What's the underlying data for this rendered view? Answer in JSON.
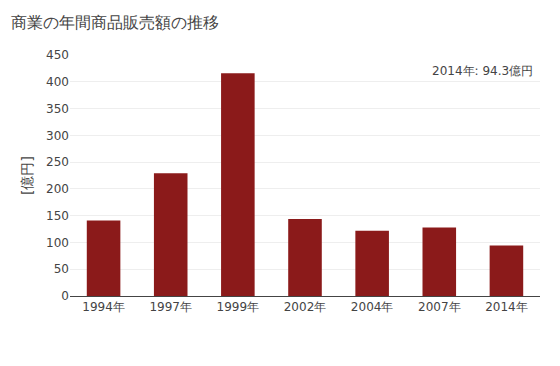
{
  "chart_data": {
    "type": "bar",
    "title": "商業の年間商品販売額の推移",
    "ylabel": "[億円]",
    "annotation": "2014年: 94.3億円",
    "categories": [
      "1994年",
      "1997年",
      "1999年",
      "2002年",
      "2004年",
      "2007年",
      "2014年"
    ],
    "values": [
      141,
      229,
      416,
      144,
      122,
      128,
      94.3
    ],
    "color": "#8B1A1A",
    "ylim": [
      0,
      450
    ],
    "yticks": [
      0,
      50,
      100,
      150,
      200,
      250,
      300,
      350,
      400,
      450
    ],
    "grid": true
  }
}
